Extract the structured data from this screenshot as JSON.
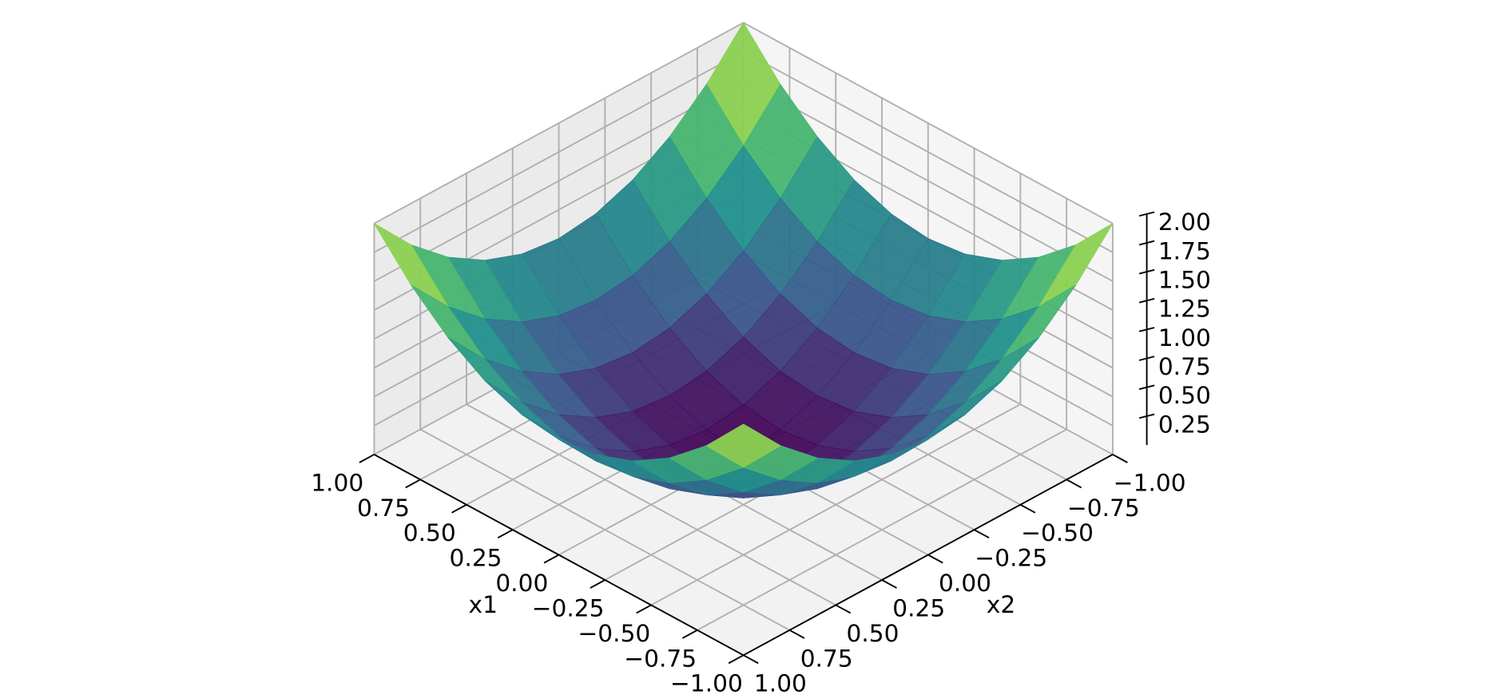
{
  "chart_data": {
    "type": "surface",
    "colormap": "viridis",
    "grid": true,
    "xlabel": "x1",
    "ylabel": "x2",
    "xlim": [
      -1,
      1
    ],
    "ylim": [
      -1,
      1
    ],
    "zlim": [
      0,
      2
    ],
    "x": [
      -1,
      -0.8,
      -0.6,
      -0.4,
      -0.2,
      0,
      0.2,
      0.4,
      0.6,
      0.8,
      1
    ],
    "y": [
      -1,
      -0.8,
      -0.6,
      -0.4,
      -0.2,
      0,
      0.2,
      0.4,
      0.6,
      0.8,
      1
    ],
    "z": [
      [
        2,
        1.64,
        1.36,
        1.16,
        1.04,
        1,
        1.04,
        1.16,
        1.36,
        1.64,
        2
      ],
      [
        1.64,
        1.28,
        1,
        0.8,
        0.68,
        0.64,
        0.68,
        0.8,
        1,
        1.28,
        1.64
      ],
      [
        1.36,
        1,
        0.72,
        0.52,
        0.4,
        0.36,
        0.4,
        0.52,
        0.72,
        1,
        1.36
      ],
      [
        1.16,
        0.8,
        0.52,
        0.32,
        0.2,
        0.16,
        0.2,
        0.32,
        0.52,
        0.8,
        1.16
      ],
      [
        1.04,
        0.68,
        0.4,
        0.2,
        0.08,
        0.04,
        0.08,
        0.2,
        0.4,
        0.68,
        1.04
      ],
      [
        1,
        0.64,
        0.36,
        0.16,
        0.04,
        0,
        0.04,
        0.16,
        0.36,
        0.64,
        1
      ],
      [
        1.04,
        0.68,
        0.4,
        0.2,
        0.08,
        0.04,
        0.08,
        0.2,
        0.4,
        0.68,
        1.04
      ],
      [
        1.16,
        0.8,
        0.52,
        0.32,
        0.2,
        0.16,
        0.2,
        0.32,
        0.52,
        0.8,
        1.16
      ],
      [
        1.36,
        1,
        0.72,
        0.52,
        0.4,
        0.36,
        0.4,
        0.52,
        0.72,
        1,
        1.36
      ],
      [
        1.64,
        1.28,
        1,
        0.8,
        0.68,
        0.64,
        0.68,
        0.8,
        1,
        1.28,
        1.64
      ],
      [
        2,
        1.64,
        1.36,
        1.16,
        1.04,
        1,
        1.04,
        1.16,
        1.36,
        1.64,
        2
      ]
    ],
    "xticks": [
      {
        "value": -1,
        "label": "−1.00"
      },
      {
        "value": -0.75,
        "label": "−0.75"
      },
      {
        "value": -0.5,
        "label": "−0.50"
      },
      {
        "value": -0.25,
        "label": "−0.25"
      },
      {
        "value": 0,
        "label": "0.00"
      },
      {
        "value": 0.25,
        "label": "0.25"
      },
      {
        "value": 0.5,
        "label": "0.50"
      },
      {
        "value": 0.75,
        "label": "0.75"
      },
      {
        "value": 1,
        "label": "1.00"
      }
    ],
    "yticks": [
      {
        "value": -1,
        "label": "−1.00"
      },
      {
        "value": -0.75,
        "label": "−0.75"
      },
      {
        "value": -0.5,
        "label": "−0.50"
      },
      {
        "value": -0.25,
        "label": "−0.25"
      },
      {
        "value": 0,
        "label": "0.00"
      },
      {
        "value": 0.25,
        "label": "0.25"
      },
      {
        "value": 0.5,
        "label": "0.50"
      },
      {
        "value": 0.75,
        "label": "0.75"
      },
      {
        "value": 1,
        "label": "1.00"
      }
    ],
    "zticks": [
      {
        "value": 0.25,
        "label": "0.25"
      },
      {
        "value": 0.5,
        "label": "0.50"
      },
      {
        "value": 0.75,
        "label": "0.75"
      },
      {
        "value": 1,
        "label": "1.00"
      },
      {
        "value": 1.25,
        "label": "1.25"
      },
      {
        "value": 1.5,
        "label": "1.50"
      },
      {
        "value": 1.75,
        "label": "1.75"
      },
      {
        "value": 2,
        "label": "2.00"
      }
    ]
  }
}
